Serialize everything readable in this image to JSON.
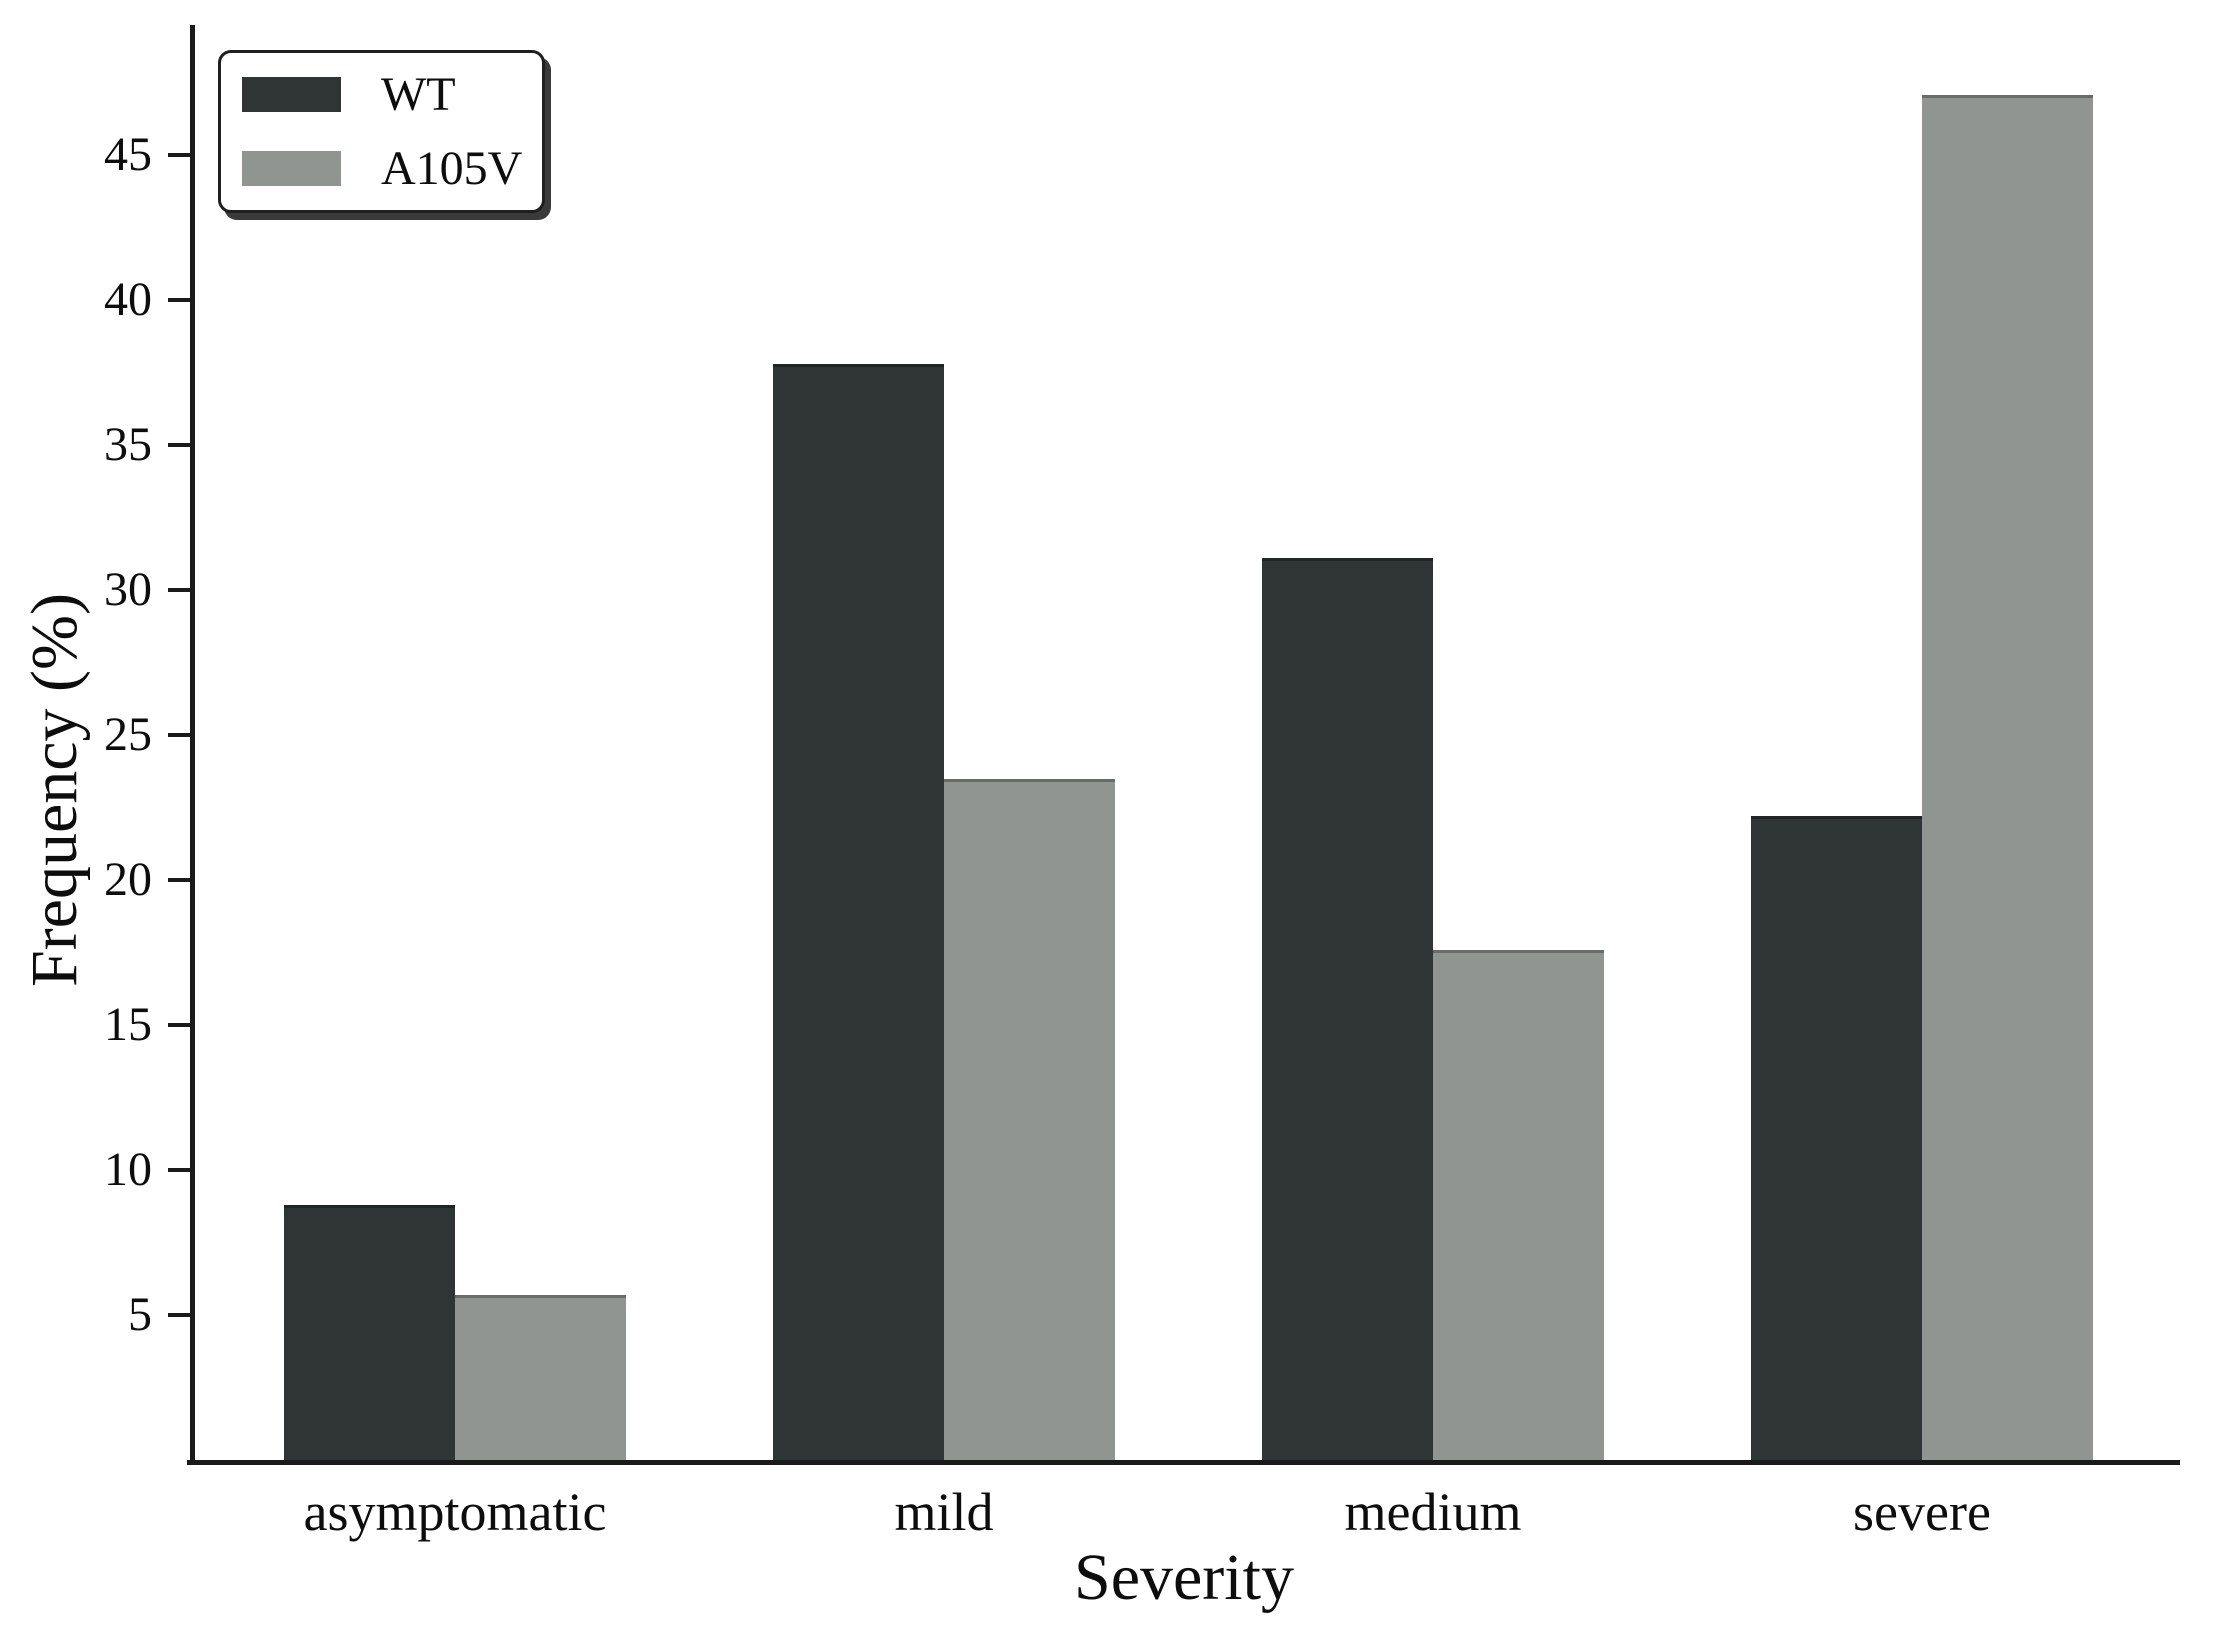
{
  "figure": {
    "background": "#ffffff",
    "text_color": "#0d0d0d",
    "axis_color": "#1a1a1a"
  },
  "chart_data": {
    "type": "bar",
    "title": "",
    "xlabel": "Severity",
    "ylabel": "Frequency (%)",
    "categories": [
      "asymptomatic",
      "mild",
      "medium",
      "severe"
    ],
    "series": [
      {
        "name": "WT",
        "color": "#2f3434",
        "values": [
          8.8,
          37.8,
          31.1,
          22.2
        ]
      },
      {
        "name": "A105V",
        "color": "#909591",
        "values": [
          5.7,
          23.5,
          17.6,
          47.1
        ]
      }
    ],
    "ylim": [
      0,
      49.5
    ],
    "yticks": [
      5,
      10,
      15,
      20,
      25,
      30,
      35,
      40,
      45
    ],
    "grid": false,
    "legend_position": "upper-left"
  }
}
